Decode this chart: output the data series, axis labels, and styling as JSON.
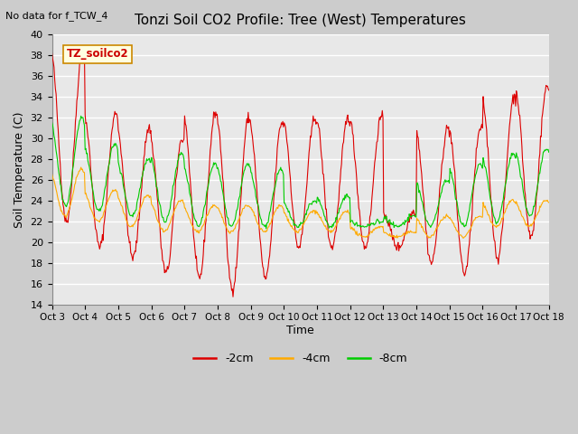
{
  "title": "Tonzi Soil CO2 Profile: Tree (West) Temperatures",
  "subtitle": "No data for f_TCW_4",
  "xlabel": "Time",
  "ylabel": "Soil Temperature (C)",
  "ylim": [
    14,
    40
  ],
  "yticks": [
    14,
    16,
    18,
    20,
    22,
    24,
    26,
    28,
    30,
    32,
    34,
    36,
    38,
    40
  ],
  "bg_color": "#e8e8e8",
  "line_colors": {
    "-2cm": "#dd0000",
    "-4cm": "#ffaa00",
    "-8cm": "#00cc00"
  },
  "legend_labels": [
    "-2cm",
    "-4cm",
    "-8cm"
  ],
  "box_label": "TZ_soilco2",
  "x_tick_labels": [
    "Oct 3",
    "Oct 4",
    "Oct 5",
    "Oct 6",
    "Oct 7",
    "Oct 8",
    "Oct 9",
    "Oct 10",
    "Oct 11",
    "Oct 12",
    "Oct 13",
    "Oct 14",
    "Oct 15",
    "Oct 16",
    "Oct 17",
    "Oct 18"
  ],
  "n_days": 15,
  "pts_per_day": 48,
  "red_data": {
    "day_peaks": [
      38.5,
      32.5,
      31.0,
      30.0,
      32.5,
      32.0,
      31.5,
      32.0,
      32.0,
      32.0,
      23.0,
      31.0,
      31.0,
      34.0,
      35.0
    ],
    "day_troughs": [
      22.0,
      19.5,
      18.5,
      17.0,
      16.5,
      15.5,
      16.5,
      19.5,
      19.5,
      19.5,
      19.5,
      18.0,
      17.0,
      18.5,
      20.5
    ]
  },
  "orange_data": {
    "day_peaks": [
      27.0,
      25.0,
      24.5,
      24.0,
      23.5,
      23.5,
      23.5,
      23.0,
      23.0,
      21.5,
      21.0,
      22.5,
      22.5,
      24.0,
      24.0
    ],
    "day_troughs": [
      22.5,
      22.0,
      21.5,
      21.0,
      21.0,
      21.0,
      21.0,
      21.0,
      21.0,
      20.5,
      20.5,
      20.5,
      20.5,
      21.5,
      21.5
    ]
  },
  "green_data": {
    "day_peaks": [
      32.0,
      29.5,
      28.0,
      28.5,
      27.5,
      27.5,
      27.0,
      24.0,
      24.5,
      22.0,
      22.5,
      26.0,
      27.5,
      28.5,
      29.0
    ],
    "day_troughs": [
      23.5,
      23.0,
      22.5,
      22.0,
      21.5,
      21.5,
      21.5,
      21.5,
      21.5,
      21.5,
      21.5,
      21.5,
      21.5,
      22.0,
      22.5
    ]
  }
}
